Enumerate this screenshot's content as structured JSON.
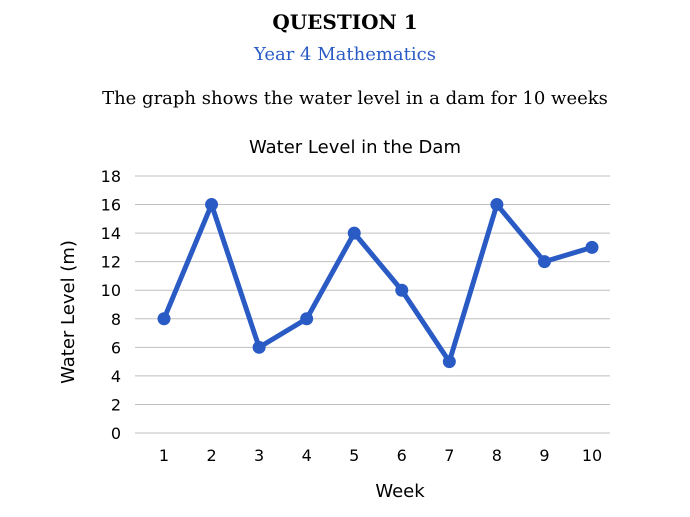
{
  "header": {
    "question": "QUESTION 1",
    "subject": "Year 4 Mathematics",
    "description": "The graph shows the water level in a dam for 10 weeks"
  },
  "chart_data": {
    "type": "line",
    "title": "Water Level in the Dam",
    "xlabel": "Week",
    "ylabel": "Water Level (m)",
    "categories": [
      "1",
      "2",
      "3",
      "4",
      "5",
      "6",
      "7",
      "8",
      "9",
      "10"
    ],
    "series": [
      {
        "values": [
          8,
          16,
          6,
          8,
          14,
          10,
          5,
          16,
          12,
          13
        ]
      }
    ],
    "ylim": [
      0,
      18
    ],
    "yticks": [
      "0",
      "2",
      "4",
      "6",
      "8",
      "10",
      "12",
      "14",
      "16",
      "18"
    ],
    "grid": true,
    "legend": "none",
    "color": "#2a5bc5",
    "grid_color": "#bfbfbf"
  }
}
